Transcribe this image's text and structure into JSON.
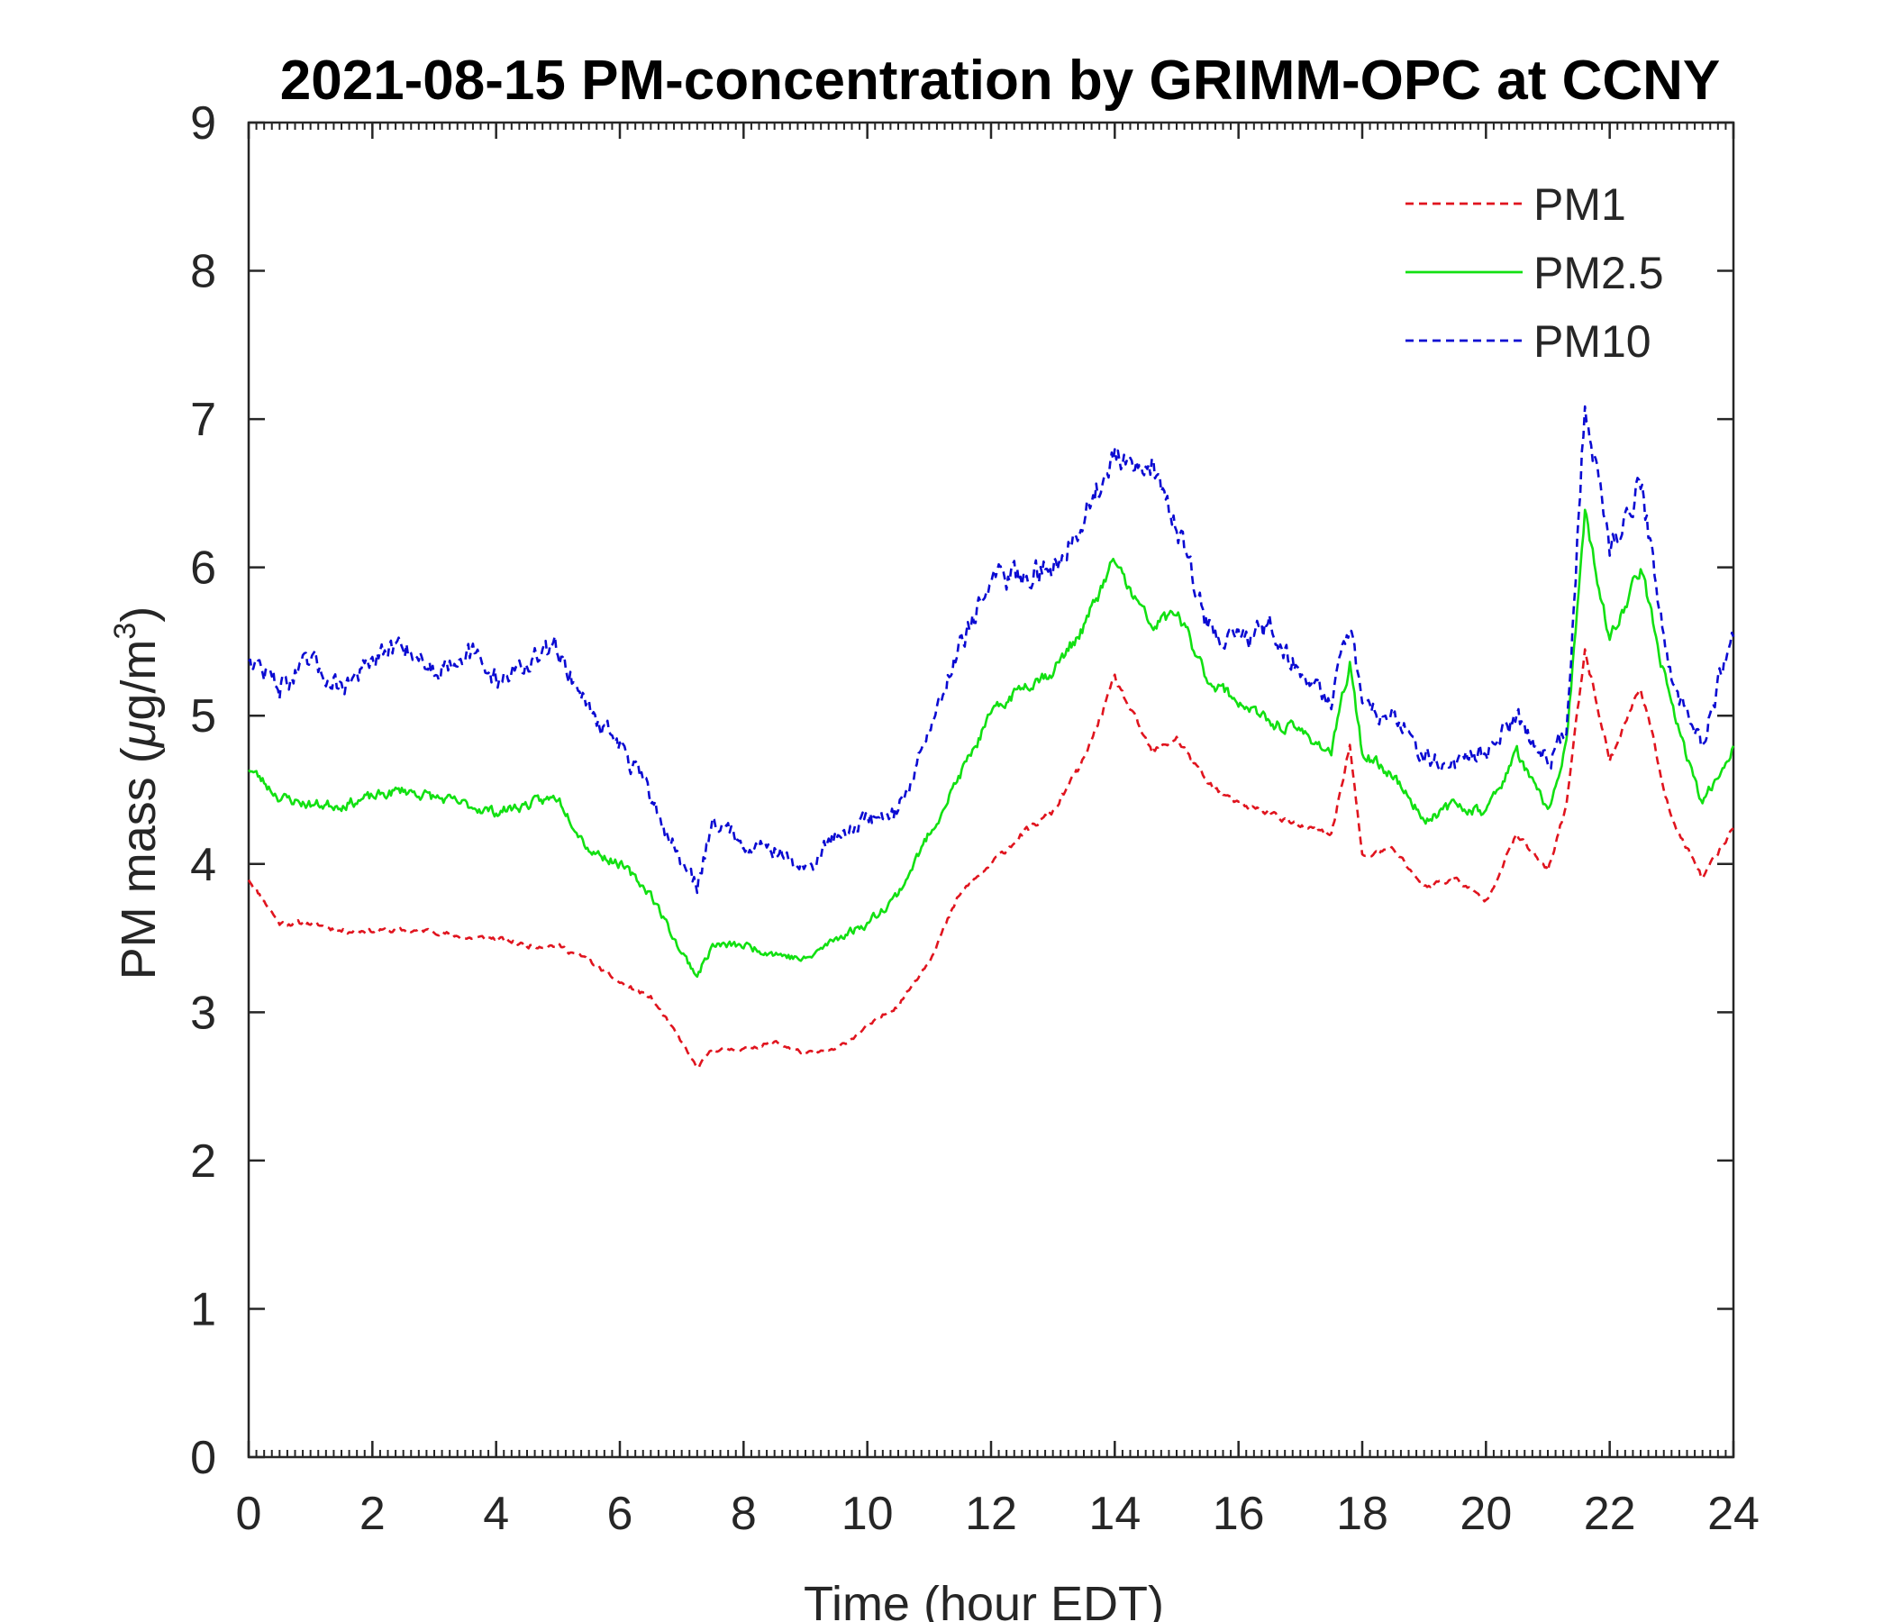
{
  "chart_data": {
    "type": "line",
    "title": "2021-08-15 PM-concentration by GRIMM-OPC at CCNY",
    "xlabel": "Time (hour EDT)",
    "ylabel": "PM mass (μg/m³)",
    "ylabel_parts": {
      "prefix": "PM mass (",
      "mu": "μ",
      "unit": "g/m",
      "sup": "3",
      "suffix": ")"
    },
    "xlim": [
      0,
      24
    ],
    "ylim": [
      0,
      9
    ],
    "xticks": [
      "0",
      "2",
      "4",
      "6",
      "8",
      "10",
      "12",
      "14",
      "16",
      "18",
      "20",
      "22",
      "24"
    ],
    "yticks": [
      "0",
      "1",
      "2",
      "3",
      "4",
      "5",
      "6",
      "7",
      "8",
      "9"
    ],
    "grid": false,
    "legend_position": "top-right",
    "series": [
      {
        "name": "PM1",
        "color": "#e0141e",
        "style": "dashed",
        "x": [
          0,
          0.5,
          1,
          1.5,
          2,
          2.5,
          3,
          3.5,
          4,
          4.5,
          5,
          5.5,
          6,
          6.5,
          7,
          7.25,
          7.5,
          8,
          8.5,
          9,
          9.5,
          10,
          10.5,
          11,
          11.5,
          12,
          12.5,
          13,
          13.5,
          14,
          14.3,
          14.6,
          15,
          15.5,
          16,
          16.5,
          17,
          17.5,
          17.8,
          18,
          18.5,
          19,
          19.5,
          20,
          20.5,
          21,
          21.3,
          21.6,
          22,
          22.5,
          23,
          23.5,
          24
        ],
        "y": [
          3.9,
          3.6,
          3.6,
          3.55,
          3.55,
          3.55,
          3.55,
          3.5,
          3.5,
          3.45,
          3.45,
          3.35,
          3.2,
          3.1,
          2.8,
          2.62,
          2.75,
          2.75,
          2.8,
          2.72,
          2.75,
          2.9,
          3.05,
          3.35,
          3.8,
          4.0,
          4.2,
          4.35,
          4.7,
          5.25,
          5.0,
          4.75,
          4.85,
          4.55,
          4.4,
          4.35,
          4.25,
          4.2,
          4.8,
          4.05,
          4.1,
          3.85,
          3.9,
          3.75,
          4.2,
          3.95,
          4.4,
          5.45,
          4.7,
          5.2,
          4.3,
          3.9,
          4.25
        ]
      },
      {
        "name": "PM2.5",
        "color": "#12e012",
        "style": "solid",
        "x": [
          0,
          0.5,
          1,
          1.5,
          2,
          2.5,
          3,
          3.5,
          4,
          4.5,
          5,
          5.5,
          6,
          6.5,
          7,
          7.25,
          7.5,
          8,
          8.5,
          9,
          9.5,
          10,
          10.5,
          11,
          11.5,
          12,
          12.5,
          13,
          13.5,
          14,
          14.3,
          14.6,
          15,
          15.5,
          16,
          16.5,
          17,
          17.5,
          17.8,
          18,
          18.5,
          19,
          19.5,
          20,
          20.5,
          21,
          21.3,
          21.6,
          22,
          22.5,
          23,
          23.5,
          24
        ],
        "y": [
          4.65,
          4.45,
          4.4,
          4.4,
          4.45,
          4.5,
          4.45,
          4.4,
          4.35,
          4.4,
          4.45,
          4.1,
          4.0,
          3.8,
          3.4,
          3.25,
          3.45,
          3.45,
          3.4,
          3.35,
          3.5,
          3.6,
          3.8,
          4.2,
          4.6,
          5.0,
          5.2,
          5.3,
          5.6,
          6.05,
          5.8,
          5.6,
          5.7,
          5.25,
          5.1,
          4.95,
          4.9,
          4.75,
          5.35,
          4.75,
          4.6,
          4.3,
          4.4,
          4.35,
          4.75,
          4.35,
          4.8,
          6.35,
          5.5,
          6.0,
          5.05,
          4.4,
          4.8
        ]
      },
      {
        "name": "PM10",
        "color": "#0a0ad2",
        "style": "dashed",
        "x": [
          0,
          0.5,
          1,
          1.5,
          2,
          2.5,
          3,
          3.5,
          4,
          4.5,
          5,
          5.5,
          6,
          6.5,
          7,
          7.25,
          7.5,
          8,
          8.5,
          9,
          9.5,
          10,
          10.5,
          11,
          11.5,
          12,
          12.5,
          13,
          13.5,
          14,
          14.3,
          14.6,
          15,
          15.5,
          16,
          16.5,
          17,
          17.5,
          17.8,
          18,
          18.5,
          19,
          19.5,
          20,
          20.5,
          21,
          21.3,
          21.6,
          22,
          22.5,
          23,
          23.5,
          24
        ],
        "y": [
          5.4,
          5.2,
          5.35,
          5.2,
          5.35,
          5.5,
          5.3,
          5.45,
          5.25,
          5.35,
          5.45,
          5.05,
          4.8,
          4.45,
          4.0,
          3.85,
          4.3,
          4.15,
          4.1,
          3.95,
          4.2,
          4.3,
          4.35,
          4.9,
          5.5,
          5.9,
          5.95,
          6.0,
          6.35,
          6.75,
          6.6,
          6.7,
          6.3,
          5.6,
          5.5,
          5.6,
          5.3,
          5.1,
          5.65,
          5.0,
          5.05,
          4.7,
          4.7,
          4.75,
          5.0,
          4.7,
          4.9,
          7.1,
          6.1,
          6.6,
          5.2,
          4.8,
          5.6
        ]
      }
    ]
  }
}
